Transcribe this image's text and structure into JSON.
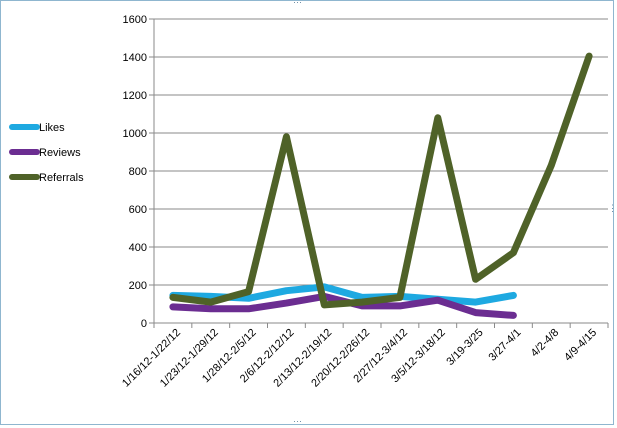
{
  "chart_data": {
    "type": "line",
    "title": "",
    "xlabel": "",
    "ylabel": "",
    "ylim": [
      0,
      1600
    ],
    "y_ticks": [
      0,
      200,
      400,
      600,
      800,
      1000,
      1200,
      1400,
      1600
    ],
    "grid": true,
    "legend_position": "left",
    "categories": [
      "1/16/12-1/22/12",
      "1/23/12-1/29/12",
      "1/28/12-2/5/12",
      "2/6/12-2/12/12",
      "2/13/12-2/19/12",
      "2/20/12-2/26/12",
      "2/27/12-3/4/12",
      "3/5/12-3/18/12",
      "3/19-3/25",
      "3/27-4/1",
      "4/2-4/8",
      "4/9-4/15"
    ],
    "series": [
      {
        "name": "Likes",
        "color": "#1ea9e1",
        "values": [
          145,
          140,
          130,
          170,
          190,
          135,
          140,
          125,
          110,
          145,
          null,
          null
        ]
      },
      {
        "name": "Reviews",
        "color": "#6b2d91",
        "values": [
          85,
          75,
          75,
          105,
          140,
          90,
          90,
          120,
          55,
          40,
          null,
          null
        ]
      },
      {
        "name": "Referrals",
        "color": "#4f6228",
        "values": [
          135,
          110,
          165,
          980,
          95,
          110,
          135,
          1080,
          230,
          370,
          830,
          1405
        ]
      }
    ]
  }
}
